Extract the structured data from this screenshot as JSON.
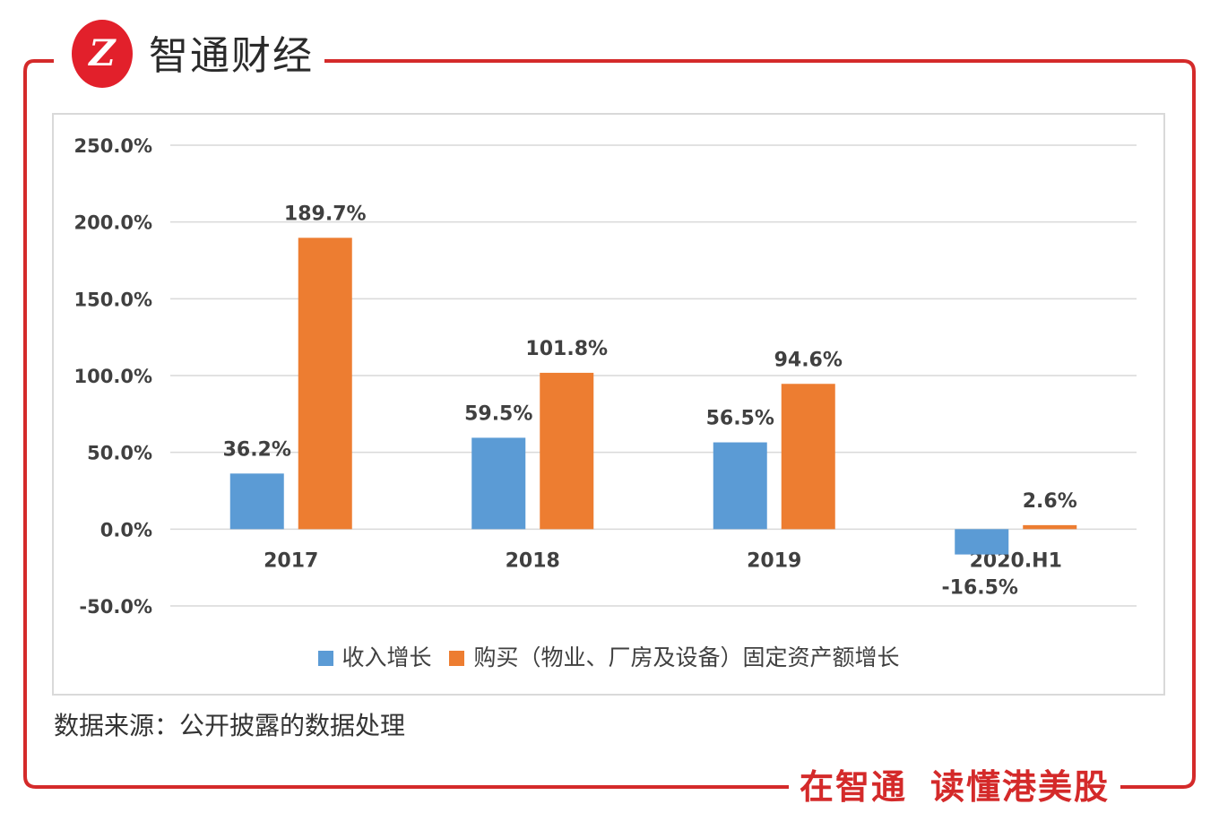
{
  "brand": {
    "name": "智通财经",
    "logo_text": "Z",
    "accent_color": "#e2202b"
  },
  "chart_data": {
    "type": "bar",
    "categories": [
      "2017",
      "2018",
      "2019",
      "2020.H1"
    ],
    "series": [
      {
        "name": "收入增长",
        "color": "#5b9bd5",
        "values": [
          36.2,
          59.5,
          56.5,
          -16.5
        ],
        "labels": [
          "36.2%",
          "59.5%",
          "56.5%",
          "-16.5%"
        ]
      },
      {
        "name": "购买（物业、厂房及设备）固定资产额增长",
        "color": "#ed7d31",
        "values": [
          189.7,
          101.8,
          94.6,
          2.6
        ],
        "labels": [
          "189.7%",
          "101.8%",
          "94.6%",
          "2.6%"
        ]
      }
    ],
    "y_ticks": [
      250,
      200,
      150,
      100,
      50,
      0,
      -50
    ],
    "y_tick_labels": [
      "250.0%",
      "200.0%",
      "150.0%",
      "100.0%",
      "50.0%",
      "0.0%",
      "-50.0%"
    ],
    "ylim": [
      -50,
      250
    ],
    "grid": true,
    "legend_position": "bottom"
  },
  "source_note": "数据来源：公开披露的数据处理",
  "slogan": {
    "part1": "在智通",
    "part2": "读懂港美股",
    "color": "#d42a2a"
  },
  "frame_color": "#d42a2a"
}
